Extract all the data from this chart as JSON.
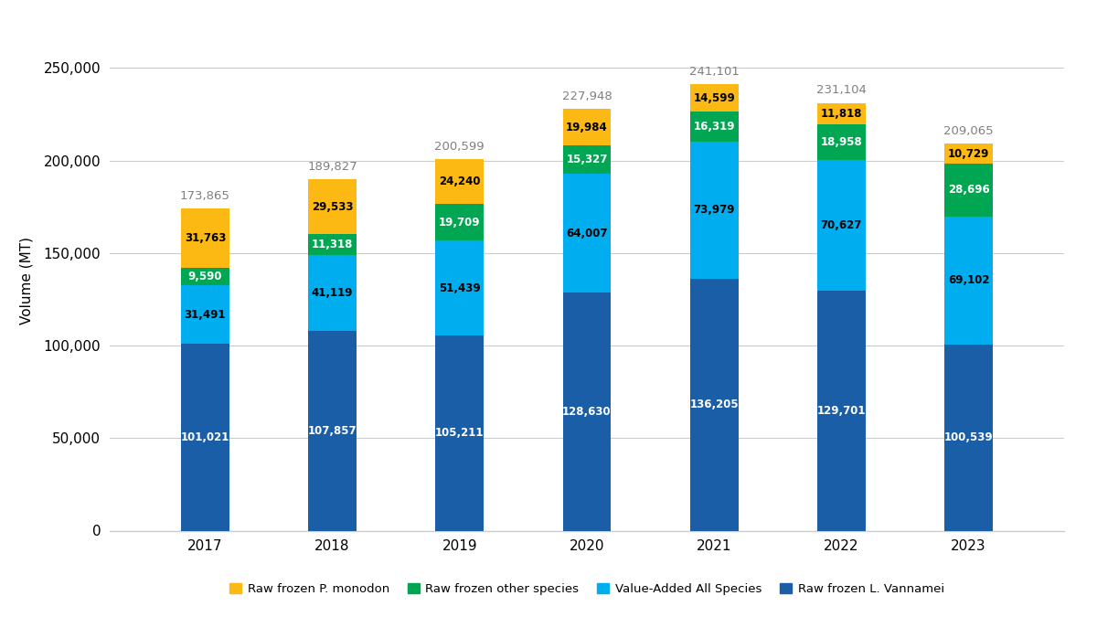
{
  "years": [
    2017,
    2018,
    2019,
    2020,
    2021,
    2022,
    2023
  ],
  "raw_frozen_vannamei": [
    101021,
    107857,
    105211,
    128630,
    136205,
    129701,
    100539
  ],
  "value_added_all": [
    31491,
    41119,
    51439,
    64007,
    73979,
    70627,
    69102
  ],
  "raw_frozen_other": [
    9590,
    11318,
    19709,
    15327,
    16319,
    18958,
    28696
  ],
  "raw_frozen_monodon": [
    31763,
    29533,
    24240,
    19984,
    14599,
    11818,
    10729
  ],
  "totals": [
    173865,
    189827,
    200599,
    227948,
    241101,
    231104,
    209065
  ],
  "colors": {
    "raw_frozen_vannamei": "#1A5EA8",
    "value_added_all": "#00AEEF",
    "raw_frozen_other": "#00A651",
    "raw_frozen_monodon": "#FDB913"
  },
  "legend_labels": [
    "Raw frozen P. monodon",
    "Raw frozen other species",
    "Value-Added All Species",
    "Raw frozen L. Vannamei"
  ],
  "ylabel": "Volume (MT)",
  "ylim": [
    0,
    270000
  ],
  "yticks": [
    0,
    50000,
    100000,
    150000,
    200000,
    250000
  ],
  "ytick_labels": [
    "0",
    "50,000",
    "100,000",
    "150,000",
    "200,000",
    "250,000"
  ],
  "bar_width": 0.38,
  "background_color": "#FFFFFF",
  "grid_color": "#CCCCCC",
  "total_label_color": "#808080",
  "label_fontsize": 8.5,
  "total_fontsize": 9.5,
  "axis_fontsize": 11
}
